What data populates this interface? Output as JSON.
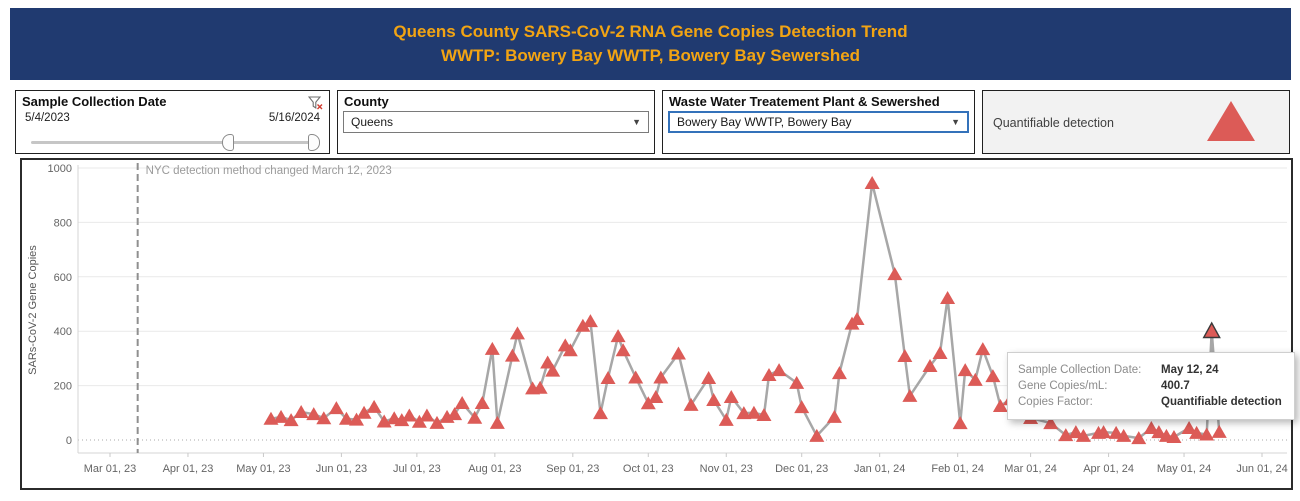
{
  "header": {
    "title_line1": "Queens County SARS-CoV-2 RNA Gene Copies Detection Trend",
    "title_line2": "WWTP: Bowery Bay WWTP, Bowery Bay Sewershed"
  },
  "filters": {
    "date": {
      "label": "Sample Collection Date",
      "start": "5/4/2023",
      "end": "5/16/2024"
    },
    "county": {
      "label": "County",
      "value": "Queens"
    },
    "wwtp": {
      "label": "Waste Water Treatement Plant & Sewershed",
      "value": "Bowery Bay WWTP, Bowery Bay"
    }
  },
  "legend": {
    "label": "Quantifiable detection",
    "marker_color": "#dc5b57"
  },
  "tooltip": {
    "rows": [
      {
        "label": "Sample Collection Date:",
        "value": "May 12, 24"
      },
      {
        "label": "Gene Copies/mL:",
        "value": "400.7"
      },
      {
        "label": "Copies Factor:",
        "value": "Quantifiable detection"
      }
    ]
  },
  "chart_data": {
    "type": "line",
    "ylabel": "SARs-CoV-2 Gene Copies",
    "ylim": [
      0,
      1000
    ],
    "yticks": [
      0,
      200,
      400,
      600,
      800,
      1000
    ],
    "grid": "horizontal",
    "marker": "triangle-up",
    "colors": {
      "marker": "#dc5b57",
      "line": "#a7a7a7"
    },
    "annotation": {
      "text": "NYC detection method changed March 12, 2023",
      "date": "2023-03-12"
    },
    "xticks": [
      {
        "label": "Mar 01, 23",
        "date": "2023-03-01"
      },
      {
        "label": "Apr 01, 23",
        "date": "2023-04-01"
      },
      {
        "label": "May 01, 23",
        "date": "2023-05-01"
      },
      {
        "label": "Jun 01, 23",
        "date": "2023-06-01"
      },
      {
        "label": "Jul 01, 23",
        "date": "2023-07-01"
      },
      {
        "label": "Aug 01, 23",
        "date": "2023-08-01"
      },
      {
        "label": "Sep 01, 23",
        "date": "2023-09-01"
      },
      {
        "label": "Oct 01, 23",
        "date": "2023-10-01"
      },
      {
        "label": "Nov 01, 23",
        "date": "2023-11-01"
      },
      {
        "label": "Dec 01, 23",
        "date": "2023-12-01"
      },
      {
        "label": "Jan 01, 24",
        "date": "2024-01-01"
      },
      {
        "label": "Feb 01, 24",
        "date": "2024-02-01"
      },
      {
        "label": "Mar 01, 24",
        "date": "2024-03-01"
      },
      {
        "label": "Apr 01, 24",
        "date": "2024-04-01"
      },
      {
        "label": "May 01, 24",
        "date": "2024-05-01"
      },
      {
        "label": "Jun 01, 24",
        "date": "2024-06-01"
      }
    ],
    "selected_point": {
      "date": "2024-05-12",
      "value": 400.7
    },
    "points": [
      [
        "2023-05-04",
        78
      ],
      [
        "2023-05-08",
        85
      ],
      [
        "2023-05-12",
        73
      ],
      [
        "2023-05-16",
        103
      ],
      [
        "2023-05-21",
        95
      ],
      [
        "2023-05-25",
        80
      ],
      [
        "2023-05-30",
        117
      ],
      [
        "2023-06-03",
        78
      ],
      [
        "2023-06-07",
        75
      ],
      [
        "2023-06-10",
        100
      ],
      [
        "2023-06-14",
        122
      ],
      [
        "2023-06-18",
        68
      ],
      [
        "2023-06-22",
        80
      ],
      [
        "2023-06-25",
        73
      ],
      [
        "2023-06-28",
        90
      ],
      [
        "2023-07-02",
        67
      ],
      [
        "2023-07-05",
        90
      ],
      [
        "2023-07-09",
        63
      ],
      [
        "2023-07-13",
        85
      ],
      [
        "2023-07-16",
        95
      ],
      [
        "2023-07-19",
        136
      ],
      [
        "2023-07-24",
        82
      ],
      [
        "2023-07-27",
        136
      ],
      [
        "2023-07-31",
        335
      ],
      [
        "2023-08-02",
        63
      ],
      [
        "2023-08-08",
        310
      ],
      [
        "2023-08-10",
        392
      ],
      [
        "2023-08-16",
        190
      ],
      [
        "2023-08-19",
        192
      ],
      [
        "2023-08-22",
        285
      ],
      [
        "2023-08-24",
        255
      ],
      [
        "2023-08-29",
        348
      ],
      [
        "2023-08-31",
        330
      ],
      [
        "2023-09-05",
        420
      ],
      [
        "2023-09-08",
        437
      ],
      [
        "2023-09-12",
        99
      ],
      [
        "2023-09-15",
        228
      ],
      [
        "2023-09-19",
        382
      ],
      [
        "2023-09-21",
        330
      ],
      [
        "2023-09-26",
        230
      ],
      [
        "2023-10-01",
        135
      ],
      [
        "2023-10-04",
        158
      ],
      [
        "2023-10-06",
        230
      ],
      [
        "2023-10-13",
        318
      ],
      [
        "2023-10-18",
        129
      ],
      [
        "2023-10-25",
        228
      ],
      [
        "2023-10-27",
        147
      ],
      [
        "2023-11-01",
        74
      ],
      [
        "2023-11-03",
        158
      ],
      [
        "2023-11-08",
        99
      ],
      [
        "2023-11-12",
        100
      ],
      [
        "2023-11-16",
        92
      ],
      [
        "2023-11-18",
        239
      ],
      [
        "2023-11-22",
        257
      ],
      [
        "2023-11-29",
        210
      ],
      [
        "2023-12-01",
        121
      ],
      [
        "2023-12-07",
        15
      ],
      [
        "2023-12-14",
        85
      ],
      [
        "2023-12-16",
        246
      ],
      [
        "2023-12-21",
        428
      ],
      [
        "2023-12-23",
        445
      ],
      [
        "2023-12-29",
        945
      ],
      [
        "2024-01-07",
        610
      ],
      [
        "2024-01-11",
        309
      ],
      [
        "2024-01-13",
        162
      ],
      [
        "2024-01-21",
        272
      ],
      [
        "2024-01-25",
        320
      ],
      [
        "2024-01-28",
        522
      ],
      [
        "2024-02-02",
        62
      ],
      [
        "2024-02-04",
        257
      ],
      [
        "2024-02-08",
        221
      ],
      [
        "2024-02-11",
        334
      ],
      [
        "2024-02-15",
        235
      ],
      [
        "2024-02-18",
        125
      ],
      [
        "2024-02-22",
        150
      ],
      [
        "2024-02-25",
        110
      ],
      [
        "2024-03-01",
        81
      ],
      [
        "2024-03-09",
        62
      ],
      [
        "2024-03-15",
        18
      ],
      [
        "2024-03-19",
        29
      ],
      [
        "2024-03-22",
        15
      ],
      [
        "2024-03-28",
        26
      ],
      [
        "2024-03-30",
        29
      ],
      [
        "2024-04-04",
        26
      ],
      [
        "2024-04-07",
        15
      ],
      [
        "2024-04-13",
        7
      ],
      [
        "2024-04-18",
        44
      ],
      [
        "2024-04-21",
        29
      ],
      [
        "2024-04-24",
        15
      ],
      [
        "2024-04-27",
        11
      ],
      [
        "2024-05-03",
        44
      ],
      [
        "2024-05-06",
        26
      ],
      [
        "2024-05-10",
        20
      ],
      [
        "2024-05-12",
        400.7
      ],
      [
        "2024-05-15",
        30
      ]
    ]
  }
}
